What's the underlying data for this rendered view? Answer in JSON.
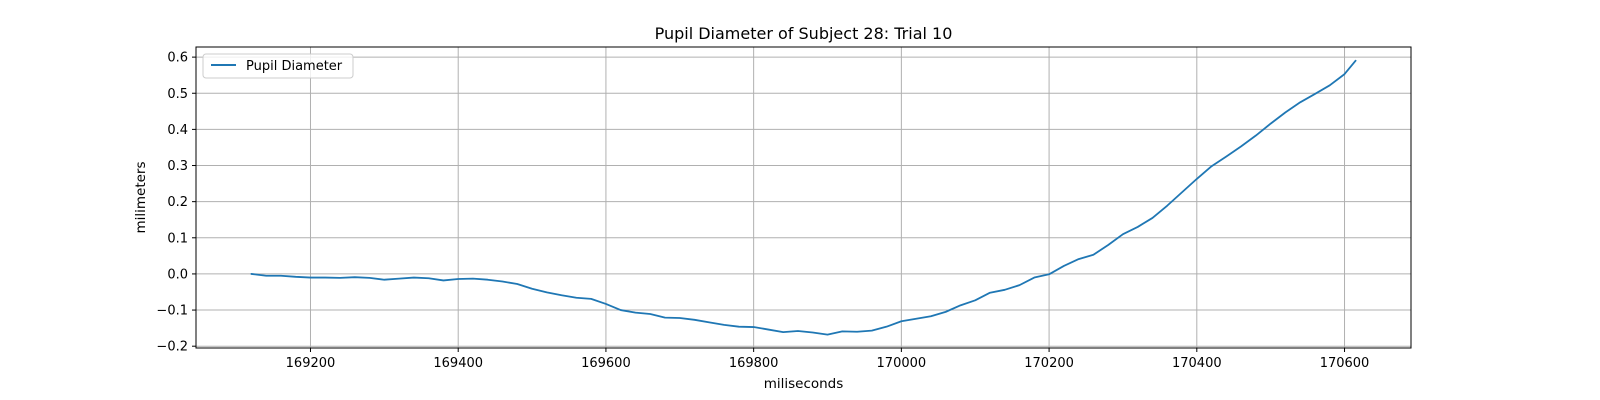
{
  "chart_data": {
    "type": "line",
    "title": "Pupil Diameter of Subject 28: Trial 10",
    "xlabel": "miliseconds",
    "ylabel": "milimeters",
    "xlim": [
      169045,
      170690
    ],
    "ylim": [
      -0.205,
      0.628
    ],
    "xticks": [
      169200,
      169400,
      169600,
      169800,
      170000,
      170200,
      170400,
      170600
    ],
    "yticks": [
      -0.2,
      -0.1,
      0.0,
      0.1,
      0.2,
      0.3,
      0.4,
      0.5,
      0.6
    ],
    "xtick_labels": [
      "169200",
      "169400",
      "169600",
      "169800",
      "170000",
      "170200",
      "170400",
      "170600"
    ],
    "ytick_labels": [
      "−0.2",
      "−0.1",
      "0.0",
      "0.1",
      "0.2",
      "0.3",
      "0.4",
      "0.5",
      "0.6"
    ],
    "grid": true,
    "legend_position": "top-left",
    "series": [
      {
        "name": "Pupil Diameter",
        "color": "#1f77b4",
        "points": [
          [
            169120,
            0.0
          ],
          [
            169140,
            -0.005
          ],
          [
            169160,
            -0.005
          ],
          [
            169180,
            -0.008
          ],
          [
            169200,
            -0.01
          ],
          [
            169220,
            -0.01
          ],
          [
            169240,
            -0.011
          ],
          [
            169260,
            -0.009
          ],
          [
            169280,
            -0.011
          ],
          [
            169300,
            -0.016
          ],
          [
            169320,
            -0.013
          ],
          [
            169340,
            -0.01
          ],
          [
            169360,
            -0.012
          ],
          [
            169380,
            -0.018
          ],
          [
            169400,
            -0.014
          ],
          [
            169420,
            -0.013
          ],
          [
            169440,
            -0.016
          ],
          [
            169460,
            -0.021
          ],
          [
            169480,
            -0.028
          ],
          [
            169500,
            -0.041
          ],
          [
            169520,
            -0.051
          ],
          [
            169540,
            -0.059
          ],
          [
            169560,
            -0.066
          ],
          [
            169580,
            -0.069
          ],
          [
            169600,
            -0.083
          ],
          [
            169620,
            -0.1
          ],
          [
            169640,
            -0.107
          ],
          [
            169660,
            -0.111
          ],
          [
            169680,
            -0.121
          ],
          [
            169700,
            -0.122
          ],
          [
            169720,
            -0.127
          ],
          [
            169740,
            -0.134
          ],
          [
            169760,
            -0.141
          ],
          [
            169780,
            -0.146
          ],
          [
            169800,
            -0.147
          ],
          [
            169820,
            -0.154
          ],
          [
            169840,
            -0.161
          ],
          [
            169860,
            -0.158
          ],
          [
            169880,
            -0.162
          ],
          [
            169900,
            -0.168
          ],
          [
            169920,
            -0.159
          ],
          [
            169940,
            -0.16
          ],
          [
            169960,
            -0.157
          ],
          [
            169980,
            -0.146
          ],
          [
            170000,
            -0.131
          ],
          [
            170020,
            -0.124
          ],
          [
            170040,
            -0.117
          ],
          [
            170060,
            -0.105
          ],
          [
            170080,
            -0.087
          ],
          [
            170100,
            -0.073
          ],
          [
            170120,
            -0.052
          ],
          [
            170140,
            -0.044
          ],
          [
            170160,
            -0.031
          ],
          [
            170180,
            -0.01
          ],
          [
            170200,
            -0.001
          ],
          [
            170220,
            0.022
          ],
          [
            170240,
            0.041
          ],
          [
            170260,
            0.053
          ],
          [
            170280,
            0.08
          ],
          [
            170300,
            0.11
          ],
          [
            170320,
            0.13
          ],
          [
            170340,
            0.155
          ],
          [
            170360,
            0.189
          ],
          [
            170380,
            0.226
          ],
          [
            170400,
            0.263
          ],
          [
            170420,
            0.298
          ],
          [
            170440,
            0.325
          ],
          [
            170460,
            0.353
          ],
          [
            170480,
            0.383
          ],
          [
            170500,
            0.416
          ],
          [
            170520,
            0.447
          ],
          [
            170540,
            0.475
          ],
          [
            170560,
            0.498
          ],
          [
            170580,
            0.522
          ],
          [
            170600,
            0.553
          ],
          [
            170615,
            0.59
          ]
        ]
      }
    ]
  }
}
